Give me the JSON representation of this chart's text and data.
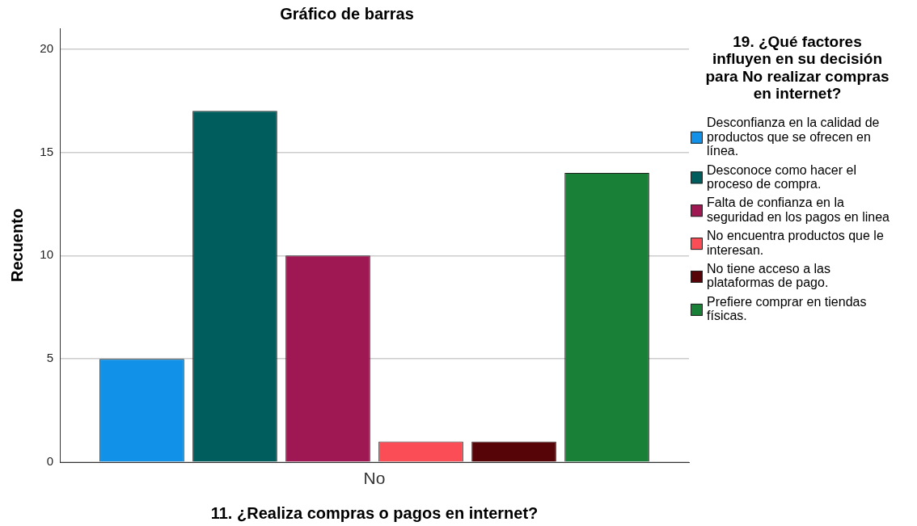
{
  "chart_data": {
    "type": "bar",
    "title": "Gráfico de barras",
    "xlabel": "11. ¿Realiza compras o pagos en internet?",
    "ylabel": "Recuento",
    "legend_title": "19. ¿Qué factores influyen en su decisión para No realizar compras en internet?",
    "categories": [
      "No"
    ],
    "series": [
      {
        "name": "Desconfianza en la calidad de productos que se ofrecen en línea.",
        "color": "#1192e8",
        "values": [
          5
        ]
      },
      {
        "name": "Desconoce como hacer el proceso de compra.",
        "color": "#005d5d",
        "values": [
          17
        ]
      },
      {
        "name": "Falta de confianza en la seguridad en los pagos en linea",
        "color": "#9f1853",
        "values": [
          10
        ]
      },
      {
        "name": "No encuentra productos que le interesan.",
        "color": "#fa4d56",
        "values": [
          1
        ]
      },
      {
        "name": "No tiene acceso a las plataformas de pago.",
        "color": "#570408",
        "values": [
          1
        ]
      },
      {
        "name": "Prefiere comprar en tiendas físicas.",
        "color": "#198038",
        "values": [
          14
        ]
      }
    ],
    "ylim": [
      0,
      21
    ],
    "yticks": [
      0,
      5,
      10,
      15,
      20
    ],
    "grid": "y",
    "legend": "right"
  }
}
